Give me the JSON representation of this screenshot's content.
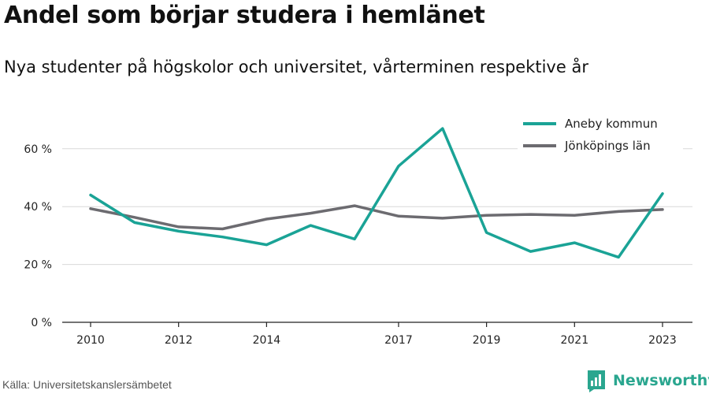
{
  "title": "Andel som börjar studera i hemlänet",
  "subtitle": "Nya studenter på högskolor och universitet, vårterminen respektive år",
  "source": "Källa: Universitetskanslersämbetet",
  "brand": {
    "name": "Newsworthy",
    "icon": "newsworthy-logo-icon",
    "color": "#2aa68f"
  },
  "chart_data": {
    "type": "line",
    "x": [
      2010,
      2011,
      2012,
      2013,
      2014,
      2015,
      2016,
      2017,
      2018,
      2019,
      2020,
      2021,
      2022,
      2023
    ],
    "x_ticks": [
      "2010",
      "2012",
      "2014",
      "2017",
      "2019",
      "2021",
      "2023"
    ],
    "y_ticks": [
      "0 %",
      "20 %",
      "40 %",
      "60 %"
    ],
    "ylim": [
      0,
      70
    ],
    "grid": true,
    "legend_position": "top-right",
    "series": [
      {
        "name": "Aneby kommun",
        "color": "#1aa396",
        "values": [
          44,
          34.5,
          31.5,
          29.5,
          26.8,
          33.5,
          28.8,
          54,
          67,
          31,
          24.5,
          27.5,
          22.5,
          44.5
        ]
      },
      {
        "name": "Jönköpings län",
        "color": "#6c6b70",
        "values": [
          39.3,
          36.3,
          33,
          32.3,
          35.7,
          37.7,
          40.3,
          36.7,
          36,
          37,
          37.3,
          37,
          38.3,
          39
        ]
      }
    ]
  }
}
